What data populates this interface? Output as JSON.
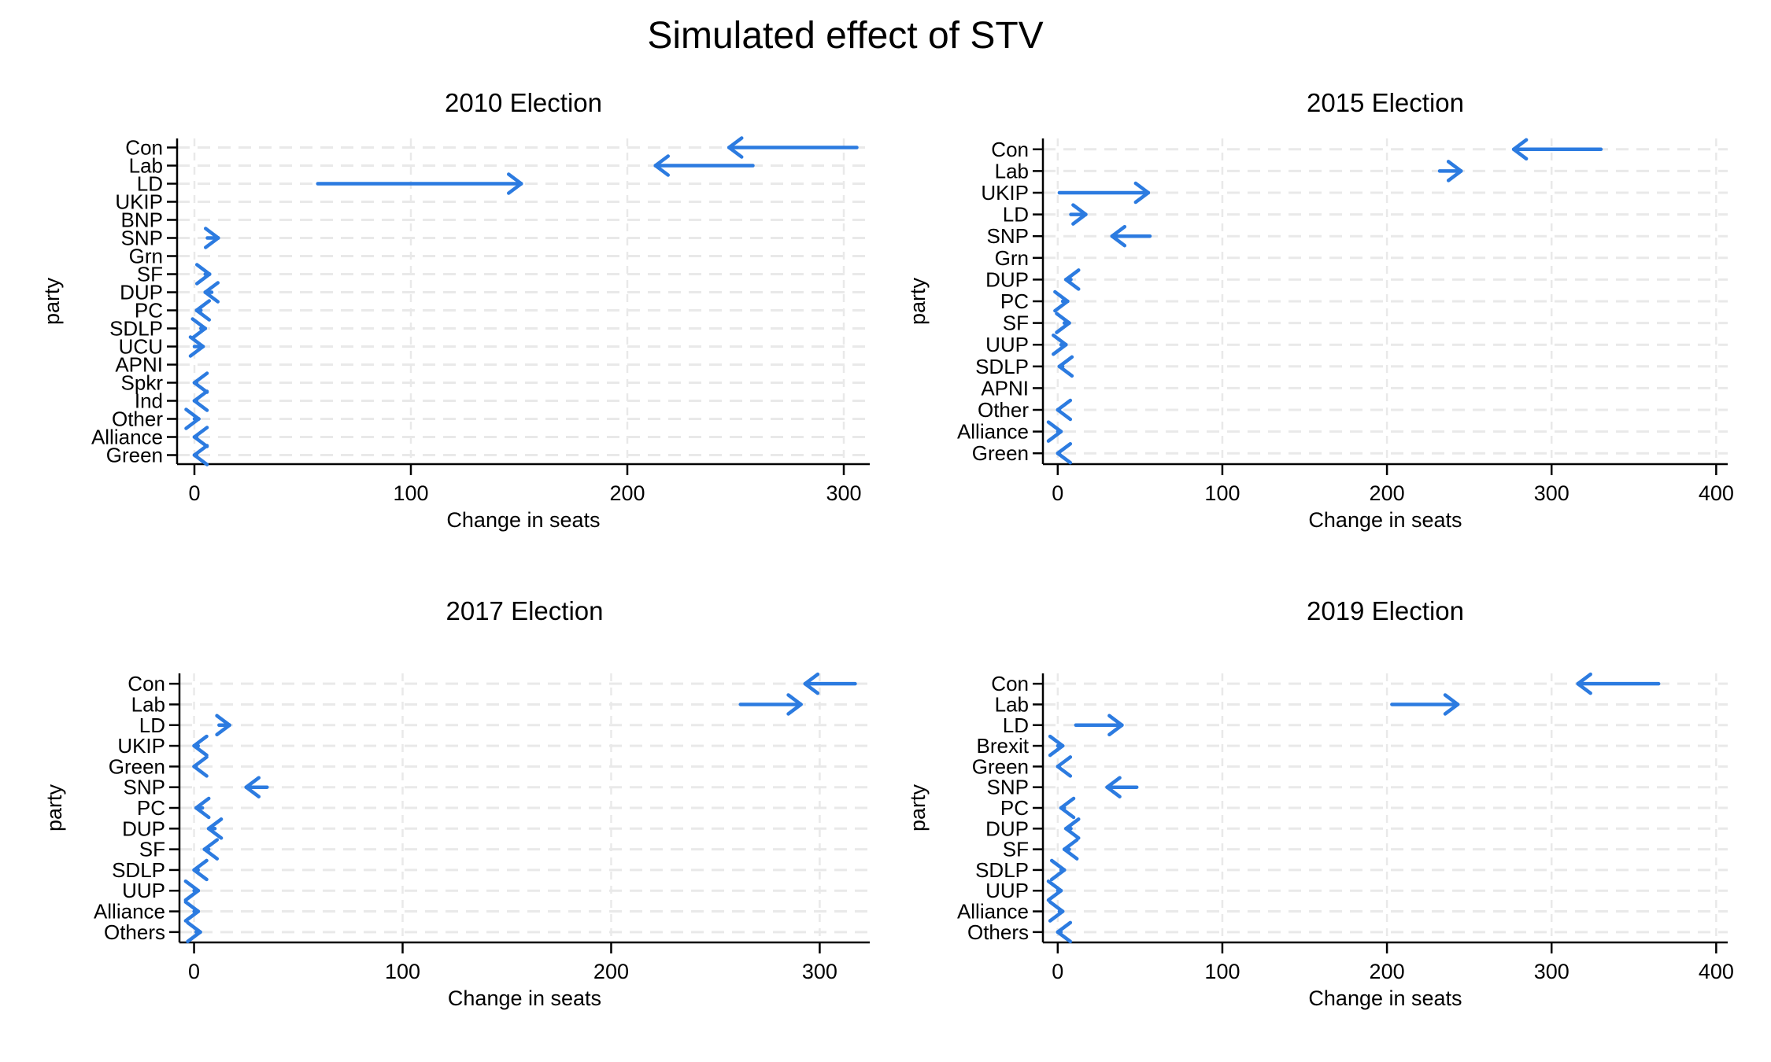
{
  "figure": {
    "title": "Simulated effect of STV"
  },
  "style": {
    "arrow_color": "#2c7be0",
    "grid_color": "#e9e9e9",
    "axis_color": "#000000",
    "text_color": "#000000",
    "background": "#ffffff"
  },
  "chart_data": [
    {
      "type": "arrow",
      "title": "2010 Election",
      "xlabel": "Change in seats",
      "ylabel": "party",
      "xlim": [
        -8,
        312
      ],
      "xticks": [
        0,
        100,
        200,
        300
      ],
      "grid": true,
      "categories": [
        "Con",
        "Lab",
        "LD",
        "UKIP",
        "BNP",
        "SNP",
        "Grn",
        "SF",
        "DUP",
        "PC",
        "SDLP",
        "UCU",
        "APNI",
        "Spkr",
        "Ind",
        "Other",
        "Alliance",
        "Green"
      ],
      "series": [
        {
          "name": "fptp_seats",
          "values": [
            306,
            258,
            57,
            null,
            null,
            6,
            null,
            5,
            8,
            3,
            3,
            0,
            null,
            1,
            1,
            0,
            1,
            1
          ]
        },
        {
          "name": "stv_seats",
          "values": [
            247,
            213,
            151,
            null,
            null,
            11,
            null,
            7,
            5,
            1,
            5,
            4,
            null,
            0,
            0,
            2,
            0,
            0
          ]
        }
      ]
    },
    {
      "type": "arrow",
      "title": "2015 Election",
      "xlabel": "Change in seats",
      "ylabel": "party",
      "xlim": [
        -9,
        407
      ],
      "xticks": [
        0,
        100,
        200,
        300,
        400
      ],
      "grid": true,
      "categories": [
        "Con",
        "Lab",
        "UKIP",
        "LD",
        "SNP",
        "Grn",
        "DUP",
        "PC",
        "SF",
        "UUP",
        "SDLP",
        "APNI",
        "Other",
        "Alliance",
        "Green"
      ],
      "series": [
        {
          "name": "fptp_seats",
          "values": [
            330,
            232,
            1,
            8,
            56,
            null,
            8,
            3,
            4,
            2,
            3,
            null,
            1,
            0,
            1
          ]
        },
        {
          "name": "stv_seats",
          "values": [
            277,
            245,
            55,
            17,
            33,
            null,
            5,
            6,
            7,
            5,
            1,
            null,
            0,
            2,
            0
          ]
        }
      ]
    },
    {
      "type": "arrow",
      "title": "2017 Election",
      "xlabel": "Change in seats",
      "ylabel": "party",
      "xlim": [
        -7,
        324
      ],
      "xticks": [
        0,
        100,
        200,
        300
      ],
      "grid": true,
      "categories": [
        "Con",
        "Lab",
        "LD",
        "UKIP",
        "Green",
        "SNP",
        "PC",
        "DUP",
        "SF",
        "SDLP",
        "UUP",
        "Alliance",
        "Others"
      ],
      "series": [
        {
          "name": "fptp_seats",
          "values": [
            317,
            262,
            12,
            2,
            1,
            35,
            4,
            10,
            7,
            2,
            0,
            0,
            1
          ]
        },
        {
          "name": "stv_seats",
          "values": [
            293,
            291,
            17,
            0,
            0,
            25,
            1,
            7,
            5,
            0,
            2,
            2,
            3
          ]
        }
      ]
    },
    {
      "type": "arrow",
      "title": "2019 Election",
      "xlabel": "Change in seats",
      "ylabel": "party",
      "xlim": [
        -9,
        407
      ],
      "xticks": [
        0,
        100,
        200,
        300,
        400
      ],
      "grid": true,
      "categories": [
        "Con",
        "Lab",
        "LD",
        "Brexit",
        "Green",
        "SNP",
        "PC",
        "DUP",
        "SF",
        "SDLP",
        "UUP",
        "Alliance",
        "Others"
      ],
      "series": [
        {
          "name": "fptp_seats",
          "values": [
            365,
            203,
            11,
            0,
            1,
            48,
            4,
            8,
            7,
            2,
            0,
            1,
            2
          ]
        },
        {
          "name": "stv_seats",
          "values": [
            316,
            243,
            39,
            3,
            0,
            30,
            2,
            5,
            4,
            4,
            2,
            3,
            0
          ]
        }
      ]
    }
  ]
}
